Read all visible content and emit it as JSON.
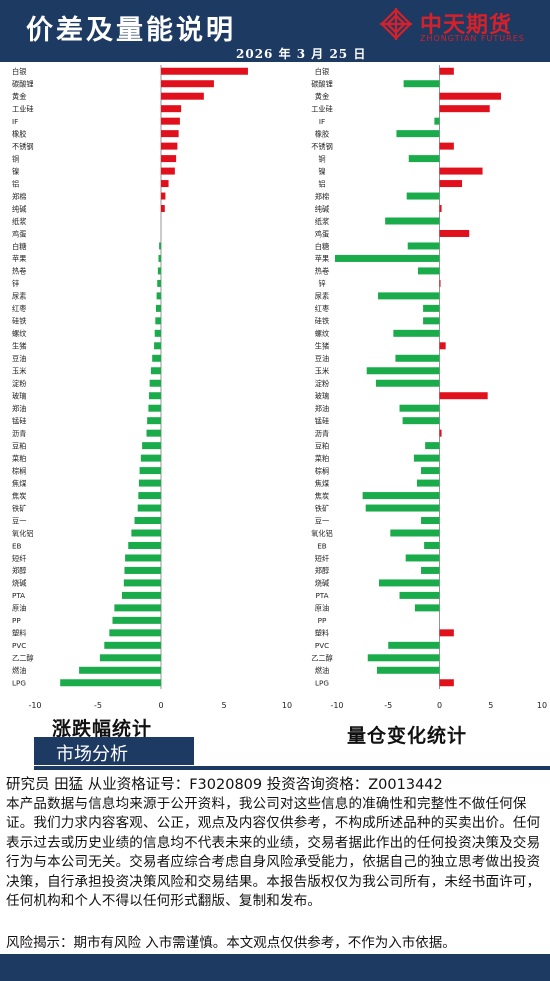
{
  "header": {
    "title": "价差及量能说明",
    "date": "2026 年 3 月 25 日",
    "logo_cn": "中天期货",
    "logo_en": "ZHONGTIAN FUTURES"
  },
  "colors": {
    "positive": "#e0101d",
    "negative": "#1aab4a",
    "navy": "#1d3a63"
  },
  "chart_data": [
    {
      "type": "bar",
      "orientation": "horizontal",
      "title": "涨跌幅统计",
      "xlim": [
        -10,
        10
      ],
      "xticks": [
        -10,
        -5,
        0,
        5,
        10
      ],
      "categories": [
        "白银",
        "碳酸锂",
        "黄金",
        "工业硅",
        "IF",
        "橡胶",
        "不锈钢",
        "铜",
        "镍",
        "铝",
        "郑棉",
        "纯碱",
        "纸浆",
        "鸡蛋",
        "白糖",
        "苹果",
        "热卷",
        "锌",
        "尿素",
        "红枣",
        "硅铁",
        "螺纹",
        "生猪",
        "豆油",
        "玉米",
        "淀粉",
        "玻璃",
        "郑油",
        "锰硅",
        "沥青",
        "豆粕",
        "菜粕",
        "棕榈",
        "焦煤",
        "焦炭",
        "铁矿",
        "豆一",
        "氧化铝",
        "EB",
        "短纤",
        "郑醇",
        "烧碱",
        "PTA",
        "原油",
        "PP",
        "塑料",
        "PVC",
        "乙二醇",
        "燃油",
        "LPG"
      ],
      "values": [
        6.9,
        4.2,
        3.4,
        1.6,
        1.5,
        1.4,
        1.3,
        1.2,
        1.1,
        0.6,
        0.35,
        0.3,
        0,
        0,
        -0.15,
        -0.2,
        -0.25,
        -0.3,
        -0.35,
        -0.4,
        -0.45,
        -0.5,
        -0.55,
        -0.7,
        -0.8,
        -0.9,
        -0.95,
        -1.0,
        -1.1,
        -1.15,
        -1.5,
        -1.6,
        -1.7,
        -1.75,
        -1.8,
        -1.85,
        -2.1,
        -2.35,
        -2.6,
        -2.85,
        -2.9,
        -2.95,
        -3.1,
        -3.7,
        -3.85,
        -4.1,
        -4.5,
        -4.85,
        -6.5,
        -8.0
      ]
    },
    {
      "type": "bar",
      "orientation": "horizontal",
      "title": "量仓变化统计",
      "xlim": [
        -10,
        10
      ],
      "xticks": [
        -10,
        -5,
        0,
        5,
        10
      ],
      "categories": [
        "白银",
        "碳酸锂",
        "黄金",
        "工业硅",
        "IF",
        "橡胶",
        "不锈钢",
        "铜",
        "镍",
        "铝",
        "郑棉",
        "纯碱",
        "纸浆",
        "鸡蛋",
        "白糖",
        "苹果",
        "热卷",
        "锌",
        "尿素",
        "红枣",
        "硅铁",
        "螺纹",
        "生猪",
        "豆油",
        "玉米",
        "淀粉",
        "玻璃",
        "郑油",
        "锰硅",
        "沥青",
        "豆粕",
        "菜粕",
        "棕榈",
        "焦煤",
        "焦炭",
        "铁矿",
        "豆一",
        "氧化铝",
        "EB",
        "短纤",
        "郑醇",
        "烧碱",
        "PTA",
        "原油",
        "PP",
        "塑料",
        "PVC",
        "乙二醇",
        "燃油",
        "LPG"
      ],
      "values": [
        1.4,
        -3.5,
        6.0,
        4.9,
        -0.5,
        -4.2,
        1.4,
        -3.0,
        4.2,
        2.2,
        -3.2,
        0.2,
        -5.3,
        2.9,
        -3.1,
        -10.2,
        -2.1,
        0.1,
        -6.0,
        -1.6,
        -1.6,
        -4.5,
        0.6,
        -4.3,
        -7.1,
        -6.2,
        4.7,
        -3.9,
        -3.6,
        0.2,
        -1.4,
        -2.5,
        -1.8,
        -2.2,
        -7.5,
        -7.2,
        -1.8,
        -4.8,
        -1.5,
        -3.3,
        -1.8,
        -5.9,
        -3.9,
        -2.4,
        0,
        1.4,
        -5.0,
        -7.0,
        -6.1,
        1.4
      ]
    }
  ],
  "market": {
    "label": "市场分析"
  },
  "analyst": "研究员  田猛    从业资格证号：F3020809   投资咨询资格：Z0013442",
  "disclaimer": "本产品数据与信息均来源于公开资料，我公司对这些信息的准确性和完整性不做任何保证。我们力求内容客观、公正，观点及内容仅供参考，不构成所述品种的买卖出价。任何表示过去或历史业绩的信息均不代表未来的业绩，交易者据此作出的任何投资决策及交易行为与本公司无关。交易者应综合考虑自身风险承受能力，依据自己的独立思考做出投资决策，自行承担投资决策风险和交易结果。本报告版权仅为我公司所有，未经书面许可，任何机构和个人不得以任何形式翻版、复制和发布。",
  "risk": "风险揭示：期市有风险  入市需谨慎。本文观点仅供参考，不作为入市依据。"
}
